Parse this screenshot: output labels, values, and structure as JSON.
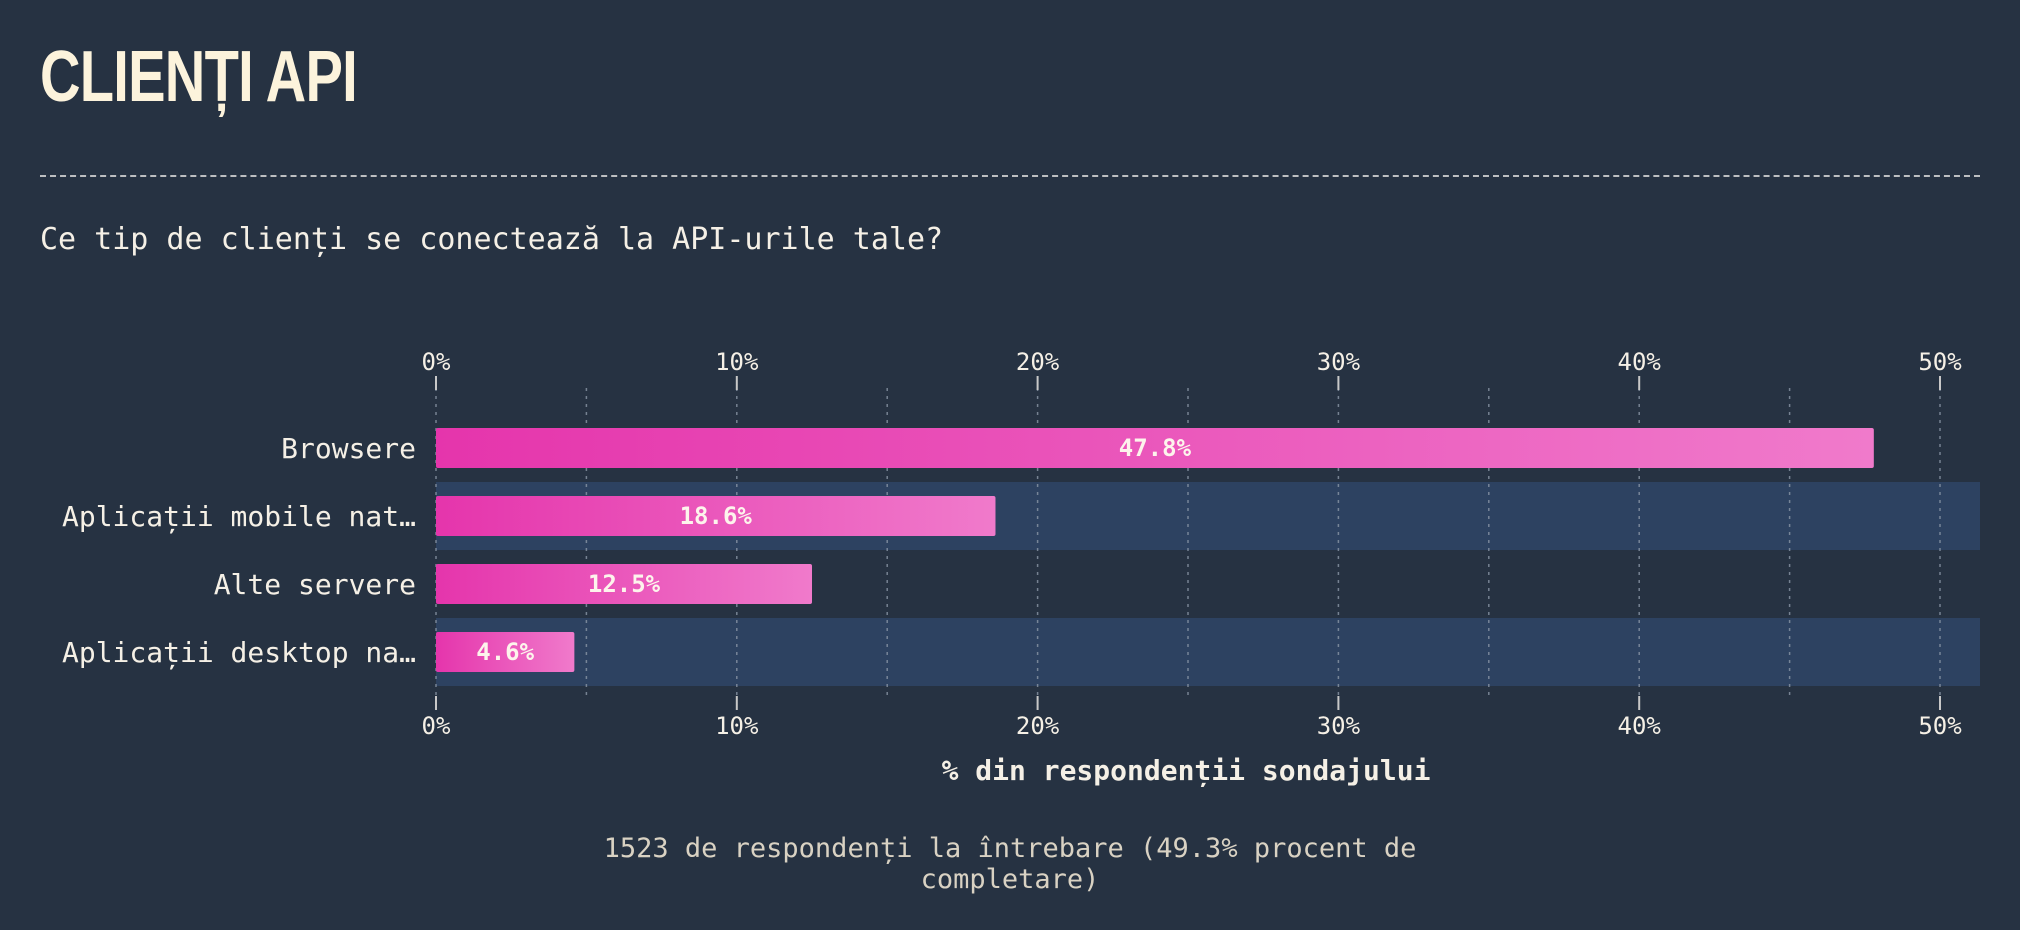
{
  "header": {
    "title": "CLIENȚI API",
    "question": "Ce tip de clienți se conectează la API-urile tale?"
  },
  "footer": {
    "note": "1523 de respondenți la întrebare (49.3% procent de completare)"
  },
  "colors": {
    "background": "#263242",
    "band": "#2d4261",
    "bar_start": "#e535ac",
    "bar_end": "#f07acb",
    "text": "#f5f0e6",
    "grid": "#8a96a6"
  },
  "chart_data": {
    "type": "bar",
    "orientation": "horizontal",
    "categories": [
      "Browsere",
      "Aplicații mobile nat…",
      "Alte servere",
      "Aplicații desktop na…"
    ],
    "values": [
      47.8,
      18.6,
      12.5,
      4.6
    ],
    "value_labels": [
      "47.8%",
      "18.6%",
      "12.5%",
      "4.6%"
    ],
    "xlabel": "% din respondenții sondajului",
    "xlim": [
      0,
      50
    ],
    "ticks": [
      0,
      10,
      20,
      30,
      40,
      50
    ],
    "tick_labels": [
      "0%",
      "10%",
      "20%",
      "30%",
      "40%",
      "50%"
    ],
    "minor_ticks": [
      5,
      15,
      25,
      35,
      45
    ],
    "grid": true,
    "axis_labels_top_and_bottom": true
  }
}
